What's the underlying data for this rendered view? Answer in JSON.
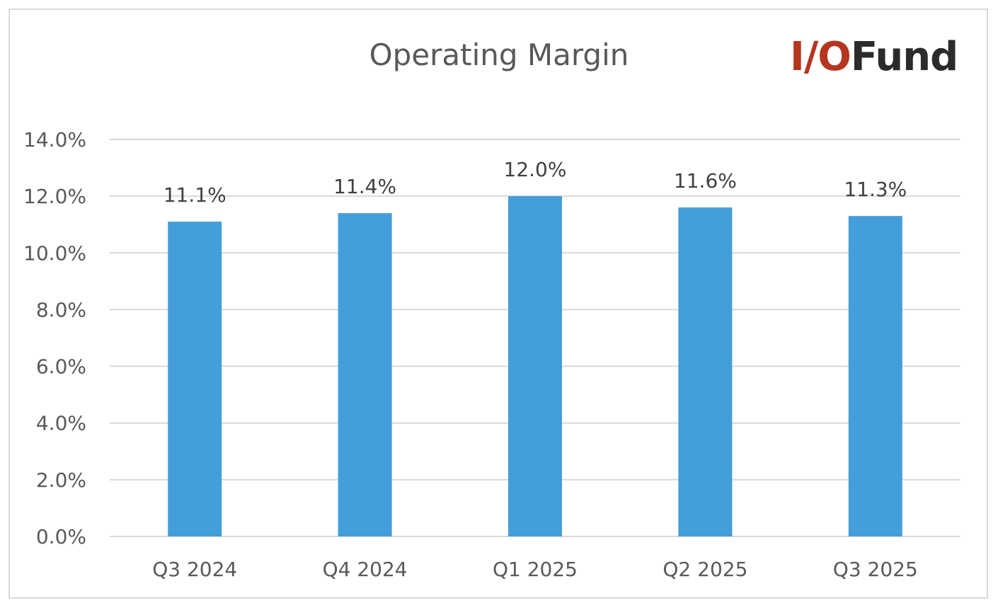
{
  "logo": {
    "io_text": "I/O",
    "fund_text": "Fund",
    "colors": {
      "io": "#b5351f",
      "fund": "#2b2b2b"
    }
  },
  "chart_data": {
    "type": "bar",
    "title": "Operating Margin",
    "categories": [
      "Q3 2024",
      "Q4 2024",
      "Q1 2025",
      "Q2 2025",
      "Q3 2025"
    ],
    "values": [
      11.1,
      11.4,
      12.0,
      11.6,
      11.3
    ],
    "data_labels": [
      "11.1%",
      "11.4%",
      "12.0%",
      "11.6%",
      "11.3%"
    ],
    "value_format": "percent_one_decimal",
    "xlabel": "",
    "ylabel": "",
    "ylim": [
      0,
      14
    ],
    "yticks": [
      0,
      2,
      4,
      6,
      8,
      10,
      12,
      14
    ],
    "ytick_labels": [
      "0.0%",
      "2.0%",
      "4.0%",
      "6.0%",
      "8.0%",
      "10.0%",
      "12.0%",
      "14.0%"
    ],
    "grid": true,
    "legend": "none",
    "colors": {
      "bar": "#439eda",
      "grid": "#d9d9d9"
    }
  }
}
